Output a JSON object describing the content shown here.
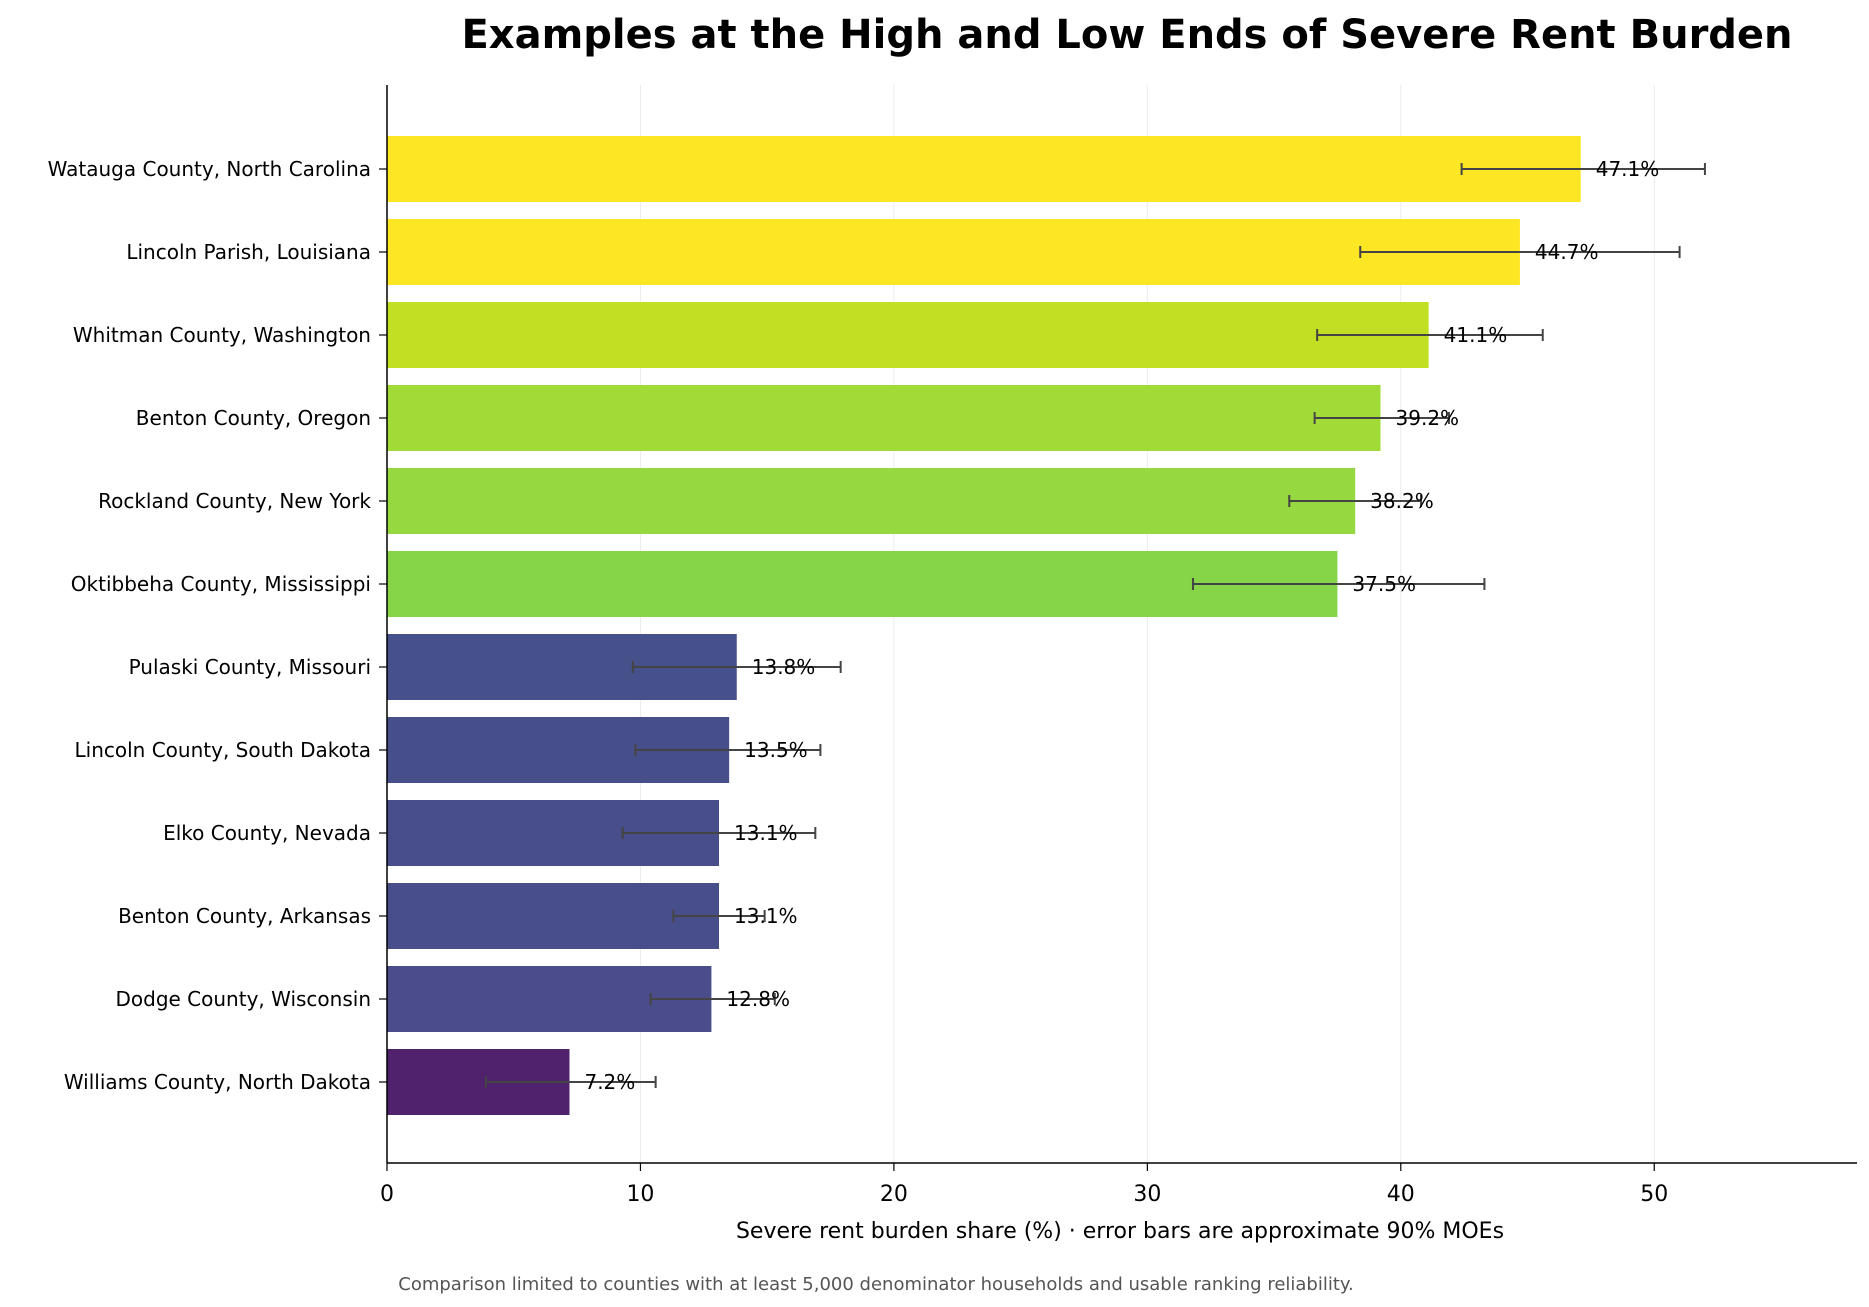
{
  "chart_data": {
    "type": "bar",
    "orientation": "horizontal",
    "title": "Examples at the High and Low Ends of Severe Rent Burden",
    "xlabel": "Severe rent burden share (%) · error bars are approximate 90% MOEs",
    "ylabel": "",
    "xlim": [
      0,
      58
    ],
    "xticks": [
      0,
      10,
      20,
      30,
      40,
      50
    ],
    "grid": "vertical",
    "footnote": "Comparison limited to counties with at least 5,000 denominator households and usable ranking reliability.",
    "categories": [
      "Watauga County, North Carolina",
      "Lincoln Parish, Louisiana",
      "Whitman County, Washington",
      "Benton County, Oregon",
      "Rockland County, New York",
      "Oktibbeha County, Mississippi",
      "Pulaski County, Missouri",
      "Lincoln County, South Dakota",
      "Elko County, Nevada",
      "Benton County, Arkansas",
      "Dodge County, Wisconsin",
      "Williams County, North Dakota"
    ],
    "values": [
      47.1,
      44.7,
      41.1,
      39.2,
      38.2,
      37.5,
      13.8,
      13.5,
      13.1,
      13.1,
      12.8,
      7.2
    ],
    "value_labels": [
      "47.1%",
      "44.7%",
      "41.1%",
      "39.2%",
      "38.2%",
      "37.5%",
      "13.8%",
      "13.5%",
      "13.1%",
      "13.1%",
      "12.8%",
      "7.2%"
    ],
    "error_low": [
      42.4,
      38.4,
      36.7,
      36.6,
      35.6,
      31.8,
      9.7,
      9.8,
      9.3,
      11.3,
      10.4,
      3.9
    ],
    "error_high": [
      52.0,
      51.0,
      45.6,
      41.9,
      40.8,
      43.3,
      17.9,
      17.1,
      16.9,
      14.9,
      15.3,
      10.6
    ],
    "colors": [
      "#fde725",
      "#fde725",
      "#c2df23",
      "#a2da37",
      "#95d840",
      "#86d549",
      "#46508a",
      "#474f8a",
      "#484e8a",
      "#484e8a",
      "#4a4d89",
      "#50216c"
    ],
    "error_bar_color": "#444444",
    "grid_color": "#ebebeb"
  }
}
